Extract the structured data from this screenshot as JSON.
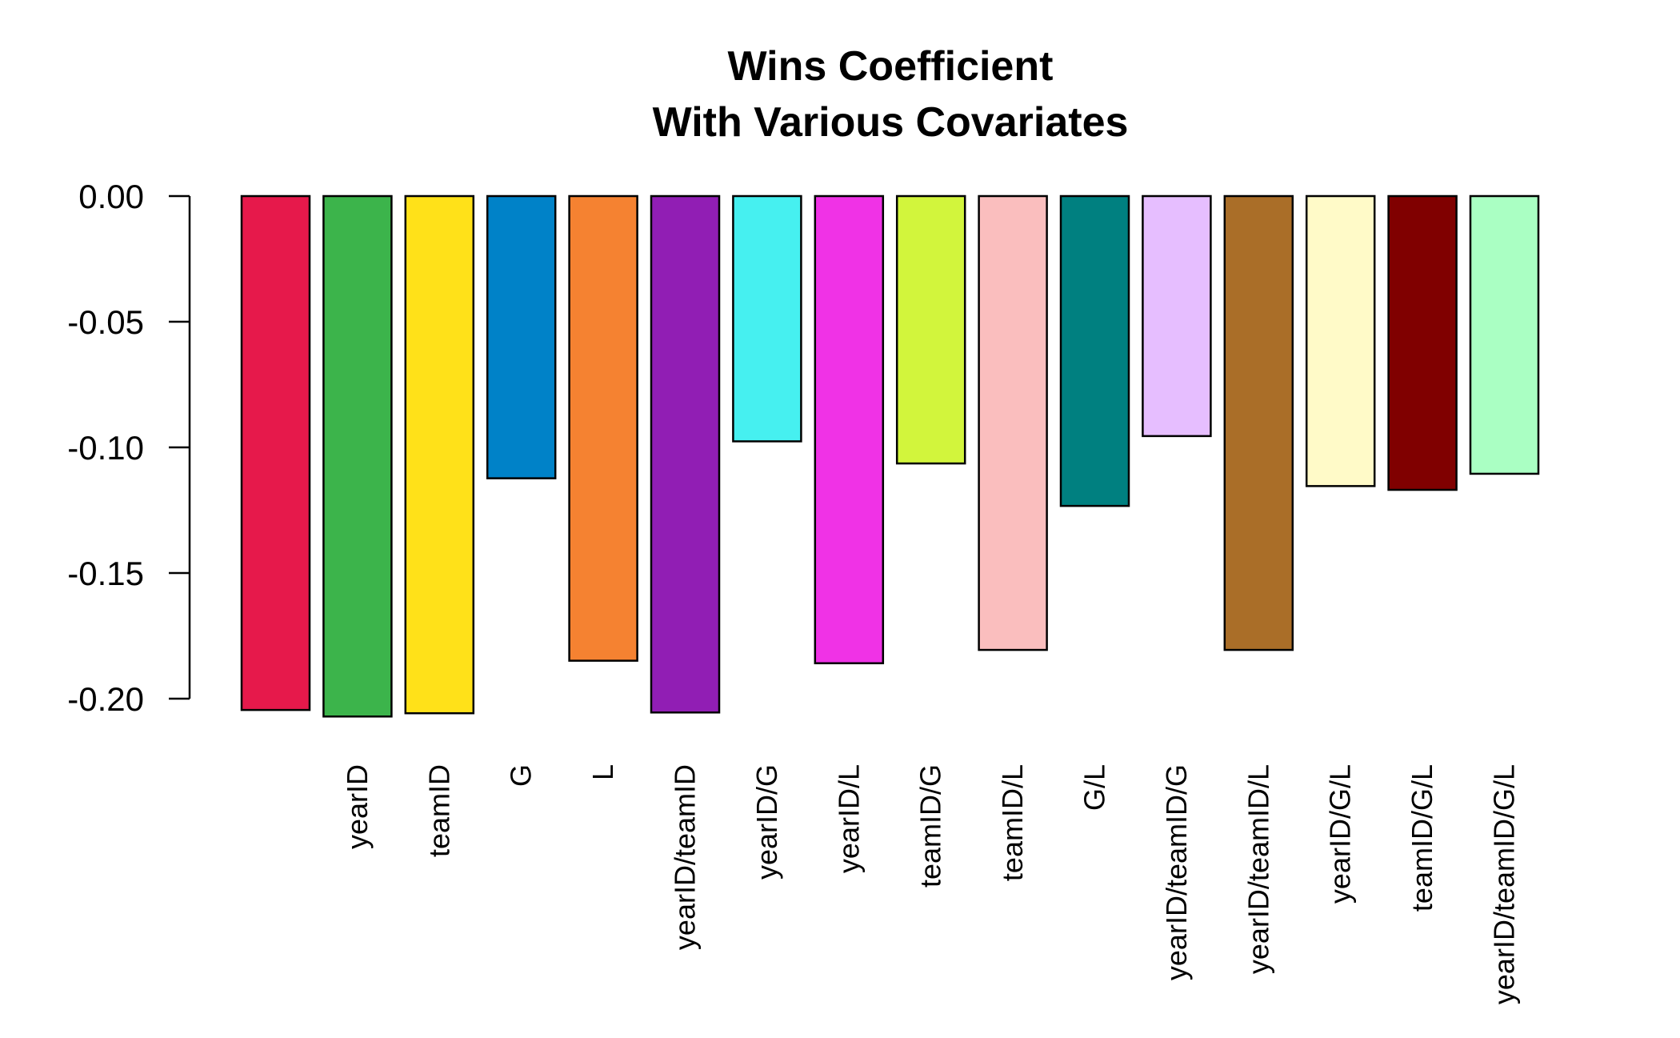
{
  "chart_data": {
    "type": "bar",
    "title": [
      "Wins Coefficient",
      "With Various Covariates"
    ],
    "xlabel": "",
    "ylabel": "",
    "ylim": [
      -0.2,
      0.0
    ],
    "yticks": [
      0.0,
      -0.05,
      -0.1,
      -0.15,
      -0.2
    ],
    "ytick_labels": [
      "0.00",
      "-0.05",
      "-0.10",
      "-0.15",
      "-0.20"
    ],
    "grid": false,
    "legend": "none",
    "categories": [
      "",
      "yearID",
      "teamID",
      "G",
      "L",
      "yearID/teamID",
      "yearID/G",
      "yearID/L",
      "teamID/G",
      "teamID/L",
      "G/L",
      "yearID/teamID/G",
      "yearID/teamID/L",
      "yearID/G/L",
      "teamID/G/L",
      "yearID/teamID/G/L"
    ],
    "values": [
      -0.2045,
      -0.2071,
      -0.2058,
      -0.1123,
      -0.1849,
      -0.2055,
      -0.0976,
      -0.1859,
      -0.1064,
      -0.1806,
      -0.1233,
      -0.0955,
      -0.1806,
      -0.1154,
      -0.1169,
      -0.1105
    ],
    "colors": [
      "#e6194b",
      "#3cb44b",
      "#ffe119",
      "#0082c8",
      "#f58231",
      "#911eb4",
      "#46f0f0",
      "#f032e6",
      "#d2f53c",
      "#fabebe",
      "#008080",
      "#e6beff",
      "#aa6e28",
      "#fffac8",
      "#800000",
      "#aaffc3"
    ]
  }
}
